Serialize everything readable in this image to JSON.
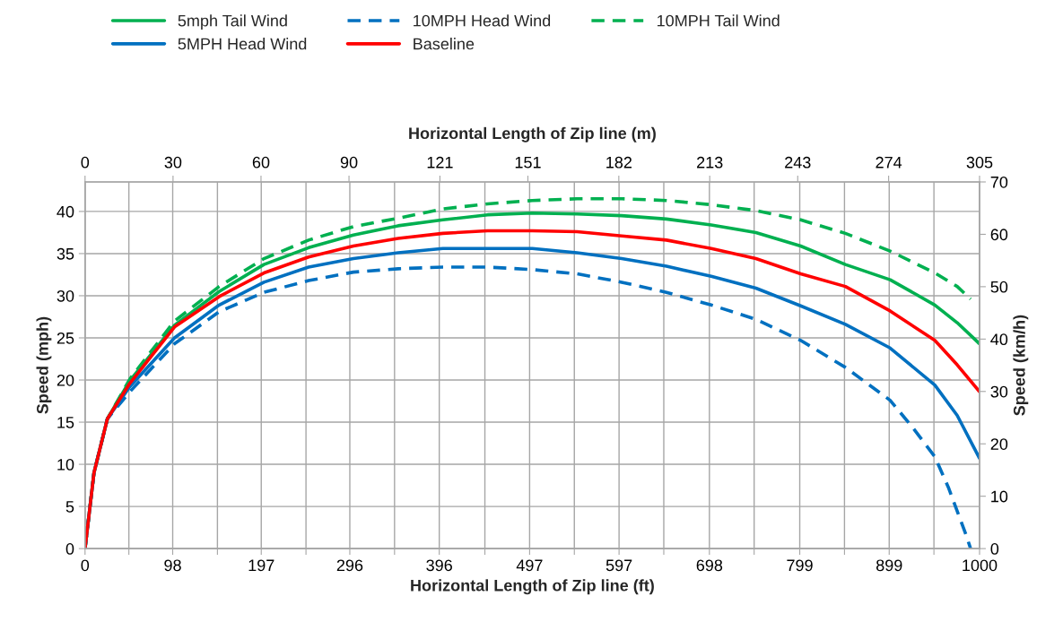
{
  "chart_data": {
    "type": "line",
    "xlabel": "Horizontal Length of Zip line (ft)",
    "x2label": "Horizontal Length of Zip line (m)",
    "ylabel": "Speed (mph)",
    "y2label": "Speed (km/h)",
    "xlim": [
      0,
      1000
    ],
    "xticks": [
      0,
      {
        "value": 49,
        "label": null
      },
      98,
      {
        "value": 148,
        "label": null
      },
      197,
      {
        "value": 247,
        "label": null
      },
      296,
      {
        "value": 346,
        "label": null
      },
      396,
      {
        "value": 447,
        "label": null
      },
      497,
      {
        "value": 547,
        "label": null
      },
      597,
      {
        "value": 647,
        "label": null
      },
      698,
      {
        "value": 748,
        "label": null
      },
      799,
      {
        "value": 849,
        "label": null
      },
      899,
      {
        "value": 949,
        "label": null
      },
      1000
    ],
    "x2lim": [
      0,
      305
    ],
    "x2ticks": [
      0,
      30,
      60,
      90,
      121,
      151,
      182,
      213,
      243,
      274,
      305
    ],
    "ylim": [
      0,
      43.5
    ],
    "yticks": [
      0,
      5,
      10,
      15,
      20,
      25,
      30,
      35,
      40
    ],
    "y2lim": [
      0,
      70
    ],
    "y2ticks": [
      0,
      10,
      20,
      30,
      40,
      50,
      60,
      70
    ],
    "grid": true,
    "legend": "top",
    "series": [
      {
        "name": "5mph Tail Wind",
        "color": "#00b050",
        "line_style": "solid",
        "x": [
          0,
          10,
          25,
          50,
          100,
          150,
          200,
          250,
          300,
          350,
          400,
          450,
          500,
          550,
          600,
          650,
          700,
          750,
          800,
          850,
          900,
          950,
          975,
          1000
        ],
        "values": [
          0,
          9,
          15.4,
          19.9,
          26.5,
          30.5,
          33.7,
          35.7,
          37.2,
          38.3,
          39.0,
          39.6,
          39.8,
          39.7,
          39.5,
          39.1,
          38.4,
          37.5,
          35.9,
          33.7,
          31.9,
          28.9,
          26.8,
          24.3
        ]
      },
      {
        "name": "10MPH Head Wind",
        "color": "#0070c0",
        "line_style": "dashed",
        "x": [
          0,
          10,
          25,
          50,
          100,
          150,
          200,
          250,
          300,
          350,
          400,
          450,
          500,
          550,
          600,
          650,
          700,
          750,
          800,
          850,
          900,
          925,
          950,
          965,
          985,
          990
        ],
        "values": [
          0,
          9,
          15.4,
          18.6,
          24.3,
          28.1,
          30.4,
          31.8,
          32.8,
          33.2,
          33.4,
          33.4,
          33.1,
          32.6,
          31.6,
          30.4,
          28.9,
          27.2,
          24.7,
          21.5,
          17.6,
          14.4,
          10.9,
          7.3,
          1.6,
          0
        ]
      },
      {
        "name": "10MPH Tail Wind",
        "color": "#00b050",
        "line_style": "dashed",
        "x": [
          0,
          10,
          25,
          50,
          100,
          150,
          200,
          250,
          300,
          350,
          400,
          450,
          500,
          550,
          600,
          650,
          700,
          750,
          800,
          850,
          900,
          950,
          975,
          990
        ],
        "values": [
          0,
          9,
          15.4,
          20.1,
          27.0,
          31.1,
          34.4,
          36.6,
          38.2,
          39.2,
          40.3,
          40.9,
          41.3,
          41.5,
          41.5,
          41.3,
          40.8,
          40.1,
          39.0,
          37.4,
          35.3,
          32.7,
          31.1,
          29.6
        ]
      },
      {
        "name": "5MPH Head Wind",
        "color": "#0070c0",
        "line_style": "solid",
        "x": [
          0,
          10,
          25,
          50,
          100,
          150,
          200,
          250,
          300,
          350,
          400,
          450,
          500,
          550,
          600,
          650,
          700,
          750,
          800,
          850,
          900,
          950,
          975,
          1000
        ],
        "values": [
          0,
          9,
          15.4,
          19.2,
          25.0,
          28.9,
          31.6,
          33.4,
          34.4,
          35.1,
          35.6,
          35.6,
          35.6,
          35.1,
          34.4,
          33.5,
          32.3,
          30.9,
          28.8,
          26.6,
          23.8,
          19.4,
          15.8,
          10.7
        ]
      },
      {
        "name": "Baseline",
        "color": "#ff0000",
        "line_style": "solid",
        "x": [
          0,
          10,
          25,
          50,
          100,
          150,
          200,
          250,
          300,
          350,
          400,
          450,
          500,
          550,
          600,
          650,
          700,
          750,
          800,
          850,
          900,
          950,
          975,
          1000
        ],
        "values": [
          0,
          9,
          15.4,
          19.6,
          26.3,
          29.9,
          32.7,
          34.6,
          35.9,
          36.8,
          37.4,
          37.7,
          37.7,
          37.6,
          37.1,
          36.6,
          35.6,
          34.4,
          32.6,
          31.1,
          28.2,
          24.7,
          21.8,
          18.6
        ]
      }
    ]
  }
}
